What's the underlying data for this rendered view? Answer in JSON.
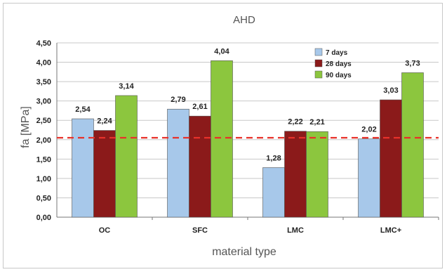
{
  "chart_data": {
    "type": "bar",
    "title": "AHD",
    "xlabel": "material type",
    "ylabel": "fa [MPa]",
    "categories": [
      "OC",
      "SFC",
      "LMC",
      "LMC+"
    ],
    "series": [
      {
        "name": "7 days",
        "color": "#a7c8ea",
        "values": [
          2.54,
          2.79,
          1.28,
          2.02
        ],
        "labels": [
          "2,54",
          "2,79",
          "1,28",
          "2,02"
        ]
      },
      {
        "name": "28 days",
        "color": "#8b1a1a",
        "values": [
          2.24,
          2.61,
          2.22,
          3.03
        ],
        "labels": [
          "2,24",
          "2,61",
          "2,22",
          "3,03"
        ]
      },
      {
        "name": "90 days",
        "color": "#8cc63e",
        "values": [
          3.14,
          4.04,
          2.21,
          3.73
        ],
        "labels": [
          "3,14",
          "4,04",
          "2,21",
          "3,73"
        ]
      }
    ],
    "ylim": [
      0,
      4.5
    ],
    "yticks": [
      "0,00",
      "0,50",
      "1,00",
      "1,50",
      "2,00",
      "2,50",
      "3,00",
      "3,50",
      "4,00",
      "4,50"
    ],
    "reference_line": {
      "value": 2.05,
      "color": "#e8312a",
      "style": "dashed"
    },
    "grid": true,
    "legend_position": "top-right"
  }
}
